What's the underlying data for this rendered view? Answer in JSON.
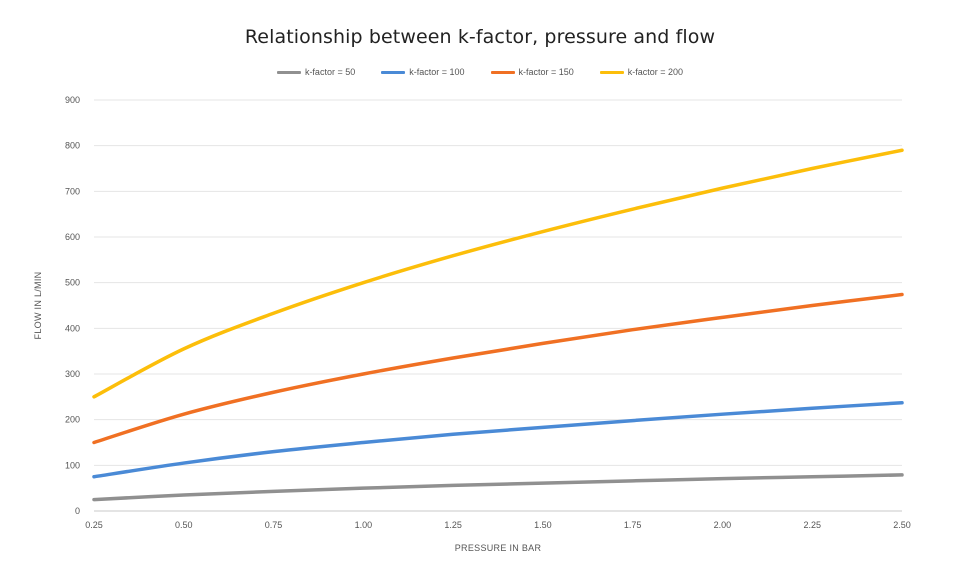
{
  "chart_data": {
    "type": "line",
    "title": "Relationship between k-factor, pressure and flow",
    "xlabel": "PRESSURE IN BAR",
    "ylabel": "FLOW IN L/MIN",
    "x": [
      "0.25",
      "0.50",
      "0.75",
      "1.00",
      "1.25",
      "1.50",
      "1.75",
      "2.00",
      "2.25",
      "2.50"
    ],
    "ylim": [
      0,
      900
    ],
    "yticks": [
      "0",
      "100",
      "200",
      "300",
      "400",
      "500",
      "600",
      "700",
      "800",
      "900"
    ],
    "grid": true,
    "legend_position": "top-center",
    "series": [
      {
        "name": "k-factor  = 50",
        "color": "#909090",
        "values": [
          25,
          35,
          43,
          50,
          56,
          61,
          66,
          71,
          75,
          79
        ]
      },
      {
        "name": "k-factor  = 100",
        "color": "#4a8ad6",
        "values": [
          75,
          105,
          130,
          150,
          168,
          183,
          198,
          212,
          225,
          237
        ]
      },
      {
        "name": "k-factor  = 150",
        "color": "#f07023",
        "values": [
          150,
          212,
          260,
          300,
          335,
          367,
          397,
          424,
          450,
          474
        ]
      },
      {
        "name": "k-factor  = 200",
        "color": "#fcbe0a",
        "values": [
          250,
          355,
          433,
          500,
          559,
          612,
          661,
          707,
          750,
          790
        ]
      }
    ]
  }
}
